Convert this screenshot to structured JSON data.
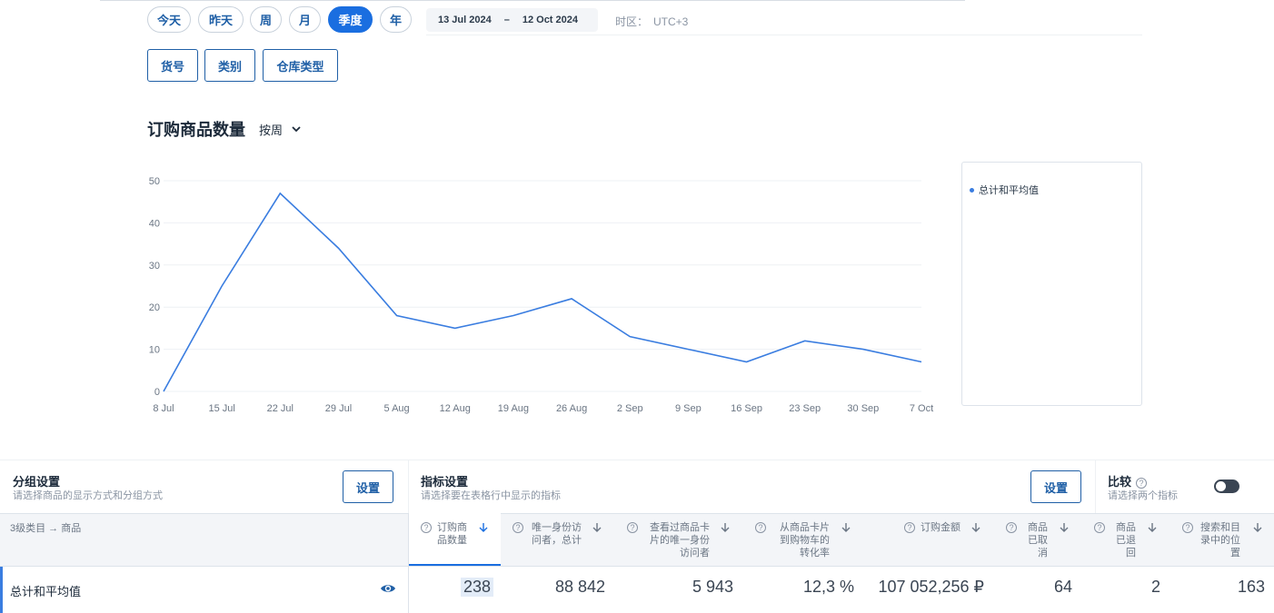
{
  "periods": [
    "今天",
    "昨天",
    "周",
    "月",
    "季度",
    "年"
  ],
  "active_period": "季度",
  "date_range": {
    "start": "13 Jul 2024",
    "end": "12 Oct 2024",
    "dash": "–"
  },
  "timezone": {
    "label": "时区：",
    "value": "UTC+3"
  },
  "group_buttons": [
    "货号",
    "类别",
    "仓库类型"
  ],
  "chart_title": "订购商品数量",
  "chart_mode": "按周",
  "legend_label": "总计和平均值",
  "chart_data": {
    "type": "line",
    "categories": [
      "8 Jul",
      "15 Jul",
      "22 Jul",
      "29 Jul",
      "5 Aug",
      "12 Aug",
      "19 Aug",
      "26 Aug",
      "2 Sep",
      "9 Sep",
      "16 Sep",
      "23 Sep",
      "30 Sep",
      "7 Oct"
    ],
    "series": [
      {
        "name": "总计和平均值",
        "values": [
          0,
          25,
          47,
          34,
          18,
          15,
          18,
          22,
          13,
          10,
          7,
          12,
          10,
          7
        ]
      }
    ],
    "yticks": [
      0,
      10,
      20,
      30,
      40,
      50
    ],
    "ylim": [
      0,
      50
    ],
    "grid": true,
    "legend": "right",
    "color": "#3a7de0"
  },
  "group_settings": {
    "title": "分组设置",
    "subtitle": "请选择商品的显示方式和分组方式",
    "button": "设置"
  },
  "metric_settings": {
    "title": "指标设置",
    "subtitle": "请选择要在表格行中显示的指标",
    "button": "设置"
  },
  "compare": {
    "title": "比较",
    "subtitle": "请选择两个指标"
  },
  "table": {
    "left_header": "3级类目 → 商品",
    "columns": [
      {
        "l1": "订购商",
        "l2": "品数量",
        "l3": ""
      },
      {
        "l1": "唯一身份访",
        "l2": "问者，总计",
        "l3": ""
      },
      {
        "l1": "查看过商品卡",
        "l2": "片的唯一身份",
        "l3": "访问者"
      },
      {
        "l1": "从商品卡片",
        "l2": "到购物车的",
        "l3": "转化率"
      },
      {
        "l1": "订购金额",
        "l2": "",
        "l3": ""
      },
      {
        "l1": "商品",
        "l2": "已取",
        "l3": "消"
      },
      {
        "l1": "商品",
        "l2": "已退",
        "l3": "回"
      },
      {
        "l1": "搜索和目",
        "l2": "录中的位",
        "l3": "置"
      }
    ],
    "row": {
      "label": "总计和平均值",
      "values": [
        "238",
        "88 842",
        "5 943",
        "12,3 %",
        "107 052,256 ₽",
        "64",
        "2",
        "163"
      ]
    }
  }
}
